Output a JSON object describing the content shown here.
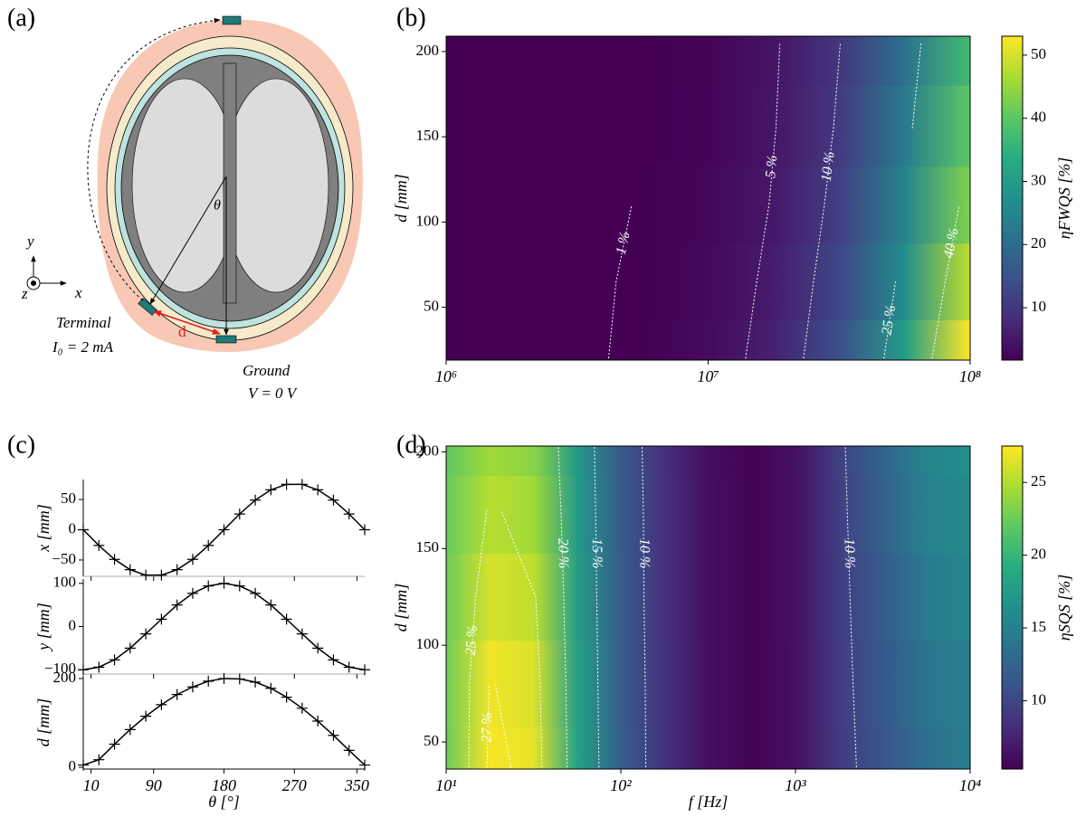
{
  "diagram": {
    "panel_label": "(a)",
    "axis_x": "x",
    "axis_y": "y",
    "axis_z": "z",
    "angle": "θ",
    "terminal": {
      "name": "Terminal",
      "current": "I₀ = 2 mA"
    },
    "distance": "d",
    "ground": {
      "name": "Ground",
      "voltage": "V = 0 V"
    }
  },
  "chart_data": [
    {
      "type": "heatmap",
      "panel_label": "(b)",
      "xlabel": null,
      "ylabel": "d [mm]",
      "log_x": true,
      "x": [
        1000000,
        1778279,
        3162278,
        5623413,
        10000000,
        17782794,
        31622777,
        56234133,
        100000000
      ],
      "y": [
        20,
        65,
        110,
        155,
        205
      ],
      "z": [
        [
          0.13,
          0.29,
          0.63,
          1.4,
          3.0,
          6.5,
          14.2,
          30,
          54
        ],
        [
          0.12,
          0.26,
          0.56,
          1.3,
          2.7,
          5.8,
          12.7,
          27,
          48
        ],
        [
          0.1,
          0.23,
          0.5,
          1.1,
          2.4,
          5.2,
          11.4,
          25,
          43
        ],
        [
          0.1,
          0.22,
          0.47,
          1.0,
          2.2,
          4.8,
          10.5,
          23,
          40
        ],
        [
          0.09,
          0.2,
          0.43,
          0.95,
          2.1,
          4.5,
          9.8,
          21,
          37
        ]
      ],
      "xlim": [
        1000000,
        100000000
      ],
      "ylim": [
        19,
        209
      ],
      "xticks": [
        {
          "value": 1000000,
          "label": "10⁶"
        },
        {
          "value": 10000000,
          "label": "10⁷"
        },
        {
          "value": 100000000,
          "label": "10⁸"
        }
      ],
      "yticks": [
        50,
        100,
        150,
        200
      ],
      "colormap": "viridis",
      "colorbar": {
        "label": "ηFWQS [%]",
        "lim": [
          1.7,
          53
        ],
        "ticks": [
          10,
          20,
          30,
          40,
          50
        ]
      },
      "contour_color": "#ffffff",
      "contours": [
        {
          "value": 1,
          "label": "1 %"
        },
        {
          "value": 5,
          "label": "5 %"
        },
        {
          "value": 10,
          "label": "10 %"
        },
        {
          "value": 25,
          "label": "25 %"
        },
        {
          "value": 40,
          "label": "40 %"
        }
      ]
    },
    {
      "type": "line",
      "panel_label": "(c)",
      "ylabel": "x [mm]",
      "xtick_labels": false,
      "x": [
        0,
        20,
        40,
        60,
        80,
        100,
        120,
        140,
        160,
        180,
        200,
        220,
        240,
        260,
        280,
        300,
        320,
        340,
        360
      ],
      "series": [
        {
          "color": "#000000",
          "marker": "+",
          "values": [
            0,
            -26,
            -49,
            -66,
            -75,
            -75,
            -66,
            -49,
            -26,
            0,
            26,
            49,
            66,
            75,
            75,
            66,
            49,
            26,
            0
          ]
        }
      ],
      "xlim": [
        0,
        360
      ],
      "ylim": [
        -77,
        83
      ],
      "xticks": [
        10,
        90,
        180,
        270,
        350
      ],
      "yticks": [
        {
          "value": -50,
          "label": "−50"
        },
        0,
        50
      ]
    },
    {
      "type": "line",
      "ylabel": "y [mm]",
      "xtick_labels": false,
      "x": [
        0,
        20,
        40,
        60,
        80,
        100,
        120,
        140,
        160,
        180,
        200,
        220,
        240,
        260,
        280,
        300,
        320,
        340,
        360
      ],
      "series": [
        {
          "color": "#000000",
          "marker": "+",
          "values": [
            -100,
            -94,
            -77,
            -50,
            -17,
            17,
            50,
            77,
            94,
            100,
            94,
            77,
            50,
            17,
            -17,
            -50,
            -77,
            -94,
            -100
          ]
        }
      ],
      "xlim": [
        0,
        360
      ],
      "ylim": [
        -110,
        110
      ],
      "xticks": [
        10,
        90,
        180,
        270,
        350
      ],
      "yticks": [
        {
          "value": -100,
          "label": "−100"
        },
        0,
        100
      ]
    },
    {
      "type": "line",
      "ylabel": "d [mm]",
      "xlabel": "θ [°]",
      "xtick_labels": true,
      "x": [
        0,
        20,
        40,
        60,
        80,
        100,
        120,
        140,
        160,
        180,
        200,
        220,
        240,
        260,
        280,
        300,
        320,
        340,
        360
      ],
      "series": [
        {
          "color": "#000000",
          "marker": "+",
          "values": [
            5,
            17,
            52,
            85,
            115,
            141,
            164,
            181,
            194,
            200,
            199,
            192,
            178,
            158,
            133,
            104,
            72,
            38,
            5
          ]
        }
      ],
      "xlim": [
        0,
        360
      ],
      "ylim": [
        -4,
        206
      ],
      "xticks": [
        10,
        90,
        180,
        270,
        350
      ],
      "yticks": [
        0,
        200
      ]
    },
    {
      "type": "heatmap",
      "panel_label": "(d)",
      "xlabel": "f [Hz]",
      "ylabel": "d [mm]",
      "log_x": true,
      "x": [
        10,
        17.78,
        31.62,
        56.23,
        100,
        177.8,
        316.2,
        562.3,
        1000,
        1778,
        3162,
        5623,
        10000
      ],
      "y": [
        35,
        80,
        125,
        170,
        205
      ],
      "z": [
        [
          22.5,
          27.3,
          26.7,
          18,
          12,
          8.5,
          6.2,
          5.4,
          6.2,
          9.2,
          11.2,
          13.5,
          14.6
        ],
        [
          22.6,
          27.1,
          26.3,
          17.8,
          11.9,
          8.5,
          6.2,
          5.4,
          6.2,
          9.3,
          11.5,
          13.9,
          15.0
        ],
        [
          22.5,
          26.2,
          25.4,
          17.6,
          11.8,
          8.4,
          6.2,
          5.4,
          6.3,
          9.4,
          11.8,
          14.4,
          15.6
        ],
        [
          22.3,
          25.2,
          24.4,
          17.4,
          11.7,
          8.4,
          6.2,
          5.4,
          6.3,
          9.5,
          12.2,
          15.0,
          16.0
        ],
        [
          22,
          24.4,
          23.6,
          17.2,
          11.6,
          8.3,
          6.1,
          5.4,
          6.3,
          9.6,
          12.5,
          15.2,
          16.4
        ]
      ],
      "xlim": [
        10,
        10000
      ],
      "ylim": [
        36,
        203
      ],
      "xticks": [
        {
          "value": 10,
          "label": "10¹"
        },
        {
          "value": 100,
          "label": "10²"
        },
        {
          "value": 1000,
          "label": "10³"
        },
        {
          "value": 10000,
          "label": "10⁴"
        }
      ],
      "yticks": [
        50,
        100,
        150,
        200
      ],
      "colormap": "viridis",
      "colorbar": {
        "label": "ηSQS [%]",
        "lim": [
          5.3,
          27.5
        ],
        "ticks": [
          10,
          15,
          20,
          25
        ]
      },
      "contour_color": "#ffffff",
      "contours": [
        {
          "value": 25,
          "label": "25 %"
        },
        {
          "value": 27,
          "label": "27 %"
        },
        {
          "value": 20,
          "label": "20 %"
        },
        {
          "value": 15,
          "label": "15 %"
        },
        {
          "value": 10,
          "label": "10 %"
        },
        {
          "value": 10,
          "label": "10 %"
        },
        {
          "value": 15,
          "label": "15 %"
        }
      ]
    }
  ]
}
